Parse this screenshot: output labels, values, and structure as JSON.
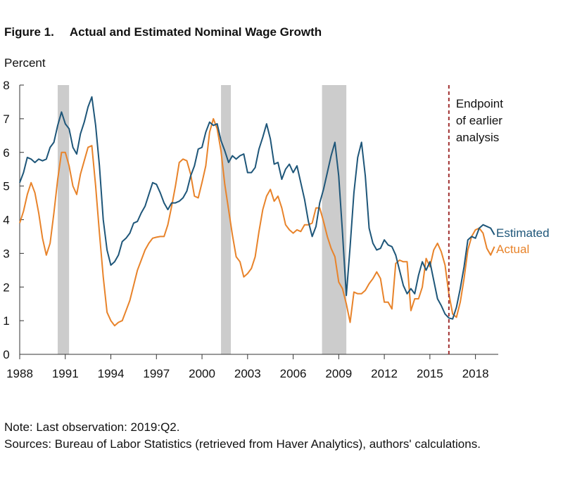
{
  "figure": {
    "number": "Figure 1.",
    "title": "Actual and Estimated Nominal Wage Growth",
    "unit_label": "Percent",
    "note": "Note: Last observation: 2019:Q2.",
    "sources": "Sources: Bureau of Labor Statistics (retrieved from Haver Analytics), authors' calculations."
  },
  "chart_data": {
    "type": "line",
    "title": "Actual and Estimated Nominal Wage Growth",
    "xlabel": "",
    "ylabel": "Percent",
    "xlim": [
      1988,
      2019.5
    ],
    "ylim": [
      0,
      8
    ],
    "x_ticks": [
      1988,
      1991,
      1994,
      1997,
      2000,
      2003,
      2006,
      2009,
      2012,
      2015,
      2018
    ],
    "y_ticks": [
      0,
      1,
      2,
      3,
      4,
      5,
      6,
      7,
      8
    ],
    "grid": false,
    "legend": "labels at right end of lines",
    "recessions": [
      [
        1990.5,
        1991.25
      ],
      [
        2001.25,
        2001.9
      ],
      [
        2007.9,
        2009.5
      ]
    ],
    "annotation": {
      "x": 2016.25,
      "lines": [
        "Endpoint",
        "of earlier",
        "analysis"
      ],
      "color": "#a03030"
    },
    "series": [
      {
        "name": "Estimated",
        "color": "#1e5679",
        "points": [
          [
            1988.0,
            5.1
          ],
          [
            1988.25,
            5.4
          ],
          [
            1988.5,
            5.85
          ],
          [
            1988.75,
            5.8
          ],
          [
            1989.0,
            5.7
          ],
          [
            1989.25,
            5.8
          ],
          [
            1989.5,
            5.75
          ],
          [
            1989.75,
            5.8
          ],
          [
            1990.0,
            6.15
          ],
          [
            1990.25,
            6.3
          ],
          [
            1990.5,
            6.8
          ],
          [
            1990.75,
            7.2
          ],
          [
            1991.0,
            6.85
          ],
          [
            1991.25,
            6.7
          ],
          [
            1991.5,
            6.15
          ],
          [
            1991.75,
            5.95
          ],
          [
            1992.0,
            6.55
          ],
          [
            1992.25,
            6.9
          ],
          [
            1992.5,
            7.35
          ],
          [
            1992.75,
            7.65
          ],
          [
            1993.0,
            6.8
          ],
          [
            1993.25,
            5.6
          ],
          [
            1993.5,
            4.0
          ],
          [
            1993.75,
            3.1
          ],
          [
            1994.0,
            2.65
          ],
          [
            1994.25,
            2.75
          ],
          [
            1994.5,
            2.95
          ],
          [
            1994.75,
            3.35
          ],
          [
            1995.0,
            3.45
          ],
          [
            1995.25,
            3.6
          ],
          [
            1995.5,
            3.9
          ],
          [
            1995.75,
            3.95
          ],
          [
            1996.0,
            4.2
          ],
          [
            1996.25,
            4.4
          ],
          [
            1996.5,
            4.75
          ],
          [
            1996.75,
            5.1
          ],
          [
            1997.0,
            5.05
          ],
          [
            1997.25,
            4.8
          ],
          [
            1997.5,
            4.5
          ],
          [
            1997.75,
            4.3
          ],
          [
            1998.0,
            4.5
          ],
          [
            1998.25,
            4.5
          ],
          [
            1998.5,
            4.55
          ],
          [
            1998.75,
            4.65
          ],
          [
            1999.0,
            4.85
          ],
          [
            1999.25,
            5.3
          ],
          [
            1999.5,
            5.6
          ],
          [
            1999.75,
            6.1
          ],
          [
            2000.0,
            6.15
          ],
          [
            2000.25,
            6.6
          ],
          [
            2000.5,
            6.9
          ],
          [
            2000.75,
            6.8
          ],
          [
            2001.0,
            6.85
          ],
          [
            2001.25,
            6.35
          ],
          [
            2001.5,
            6.05
          ],
          [
            2001.75,
            5.7
          ],
          [
            2002.0,
            5.9
          ],
          [
            2002.25,
            5.8
          ],
          [
            2002.5,
            5.9
          ],
          [
            2002.75,
            5.95
          ],
          [
            2003.0,
            5.4
          ],
          [
            2003.25,
            5.4
          ],
          [
            2003.5,
            5.55
          ],
          [
            2003.75,
            6.1
          ],
          [
            2004.0,
            6.45
          ],
          [
            2004.25,
            6.85
          ],
          [
            2004.5,
            6.4
          ],
          [
            2004.75,
            5.65
          ],
          [
            2005.0,
            5.7
          ],
          [
            2005.25,
            5.2
          ],
          [
            2005.5,
            5.5
          ],
          [
            2005.75,
            5.65
          ],
          [
            2006.0,
            5.4
          ],
          [
            2006.25,
            5.6
          ],
          [
            2006.5,
            5.1
          ],
          [
            2006.75,
            4.6
          ],
          [
            2007.0,
            3.95
          ],
          [
            2007.25,
            3.5
          ],
          [
            2007.5,
            3.8
          ],
          [
            2007.75,
            4.5
          ],
          [
            2008.0,
            4.9
          ],
          [
            2008.25,
            5.4
          ],
          [
            2008.5,
            5.9
          ],
          [
            2008.75,
            6.3
          ],
          [
            2009.0,
            5.3
          ],
          [
            2009.25,
            3.6
          ],
          [
            2009.5,
            1.75
          ],
          [
            2009.75,
            3.2
          ],
          [
            2010.0,
            4.8
          ],
          [
            2010.25,
            5.85
          ],
          [
            2010.5,
            6.3
          ],
          [
            2010.75,
            5.3
          ],
          [
            2011.0,
            3.75
          ],
          [
            2011.25,
            3.3
          ],
          [
            2011.5,
            3.1
          ],
          [
            2011.75,
            3.15
          ],
          [
            2012.0,
            3.4
          ],
          [
            2012.25,
            3.25
          ],
          [
            2012.5,
            3.2
          ],
          [
            2012.75,
            2.95
          ],
          [
            2013.0,
            2.5
          ],
          [
            2013.25,
            2.05
          ],
          [
            2013.5,
            1.8
          ],
          [
            2013.75,
            1.95
          ],
          [
            2014.0,
            1.8
          ],
          [
            2014.25,
            2.35
          ],
          [
            2014.5,
            2.75
          ],
          [
            2014.75,
            2.5
          ],
          [
            2015.0,
            2.75
          ],
          [
            2015.25,
            2.2
          ],
          [
            2015.5,
            1.65
          ],
          [
            2015.75,
            1.45
          ],
          [
            2016.0,
            1.2
          ],
          [
            2016.25,
            1.08
          ],
          [
            2016.5,
            1.05
          ],
          [
            2016.75,
            1.4
          ],
          [
            2017.0,
            1.95
          ],
          [
            2017.25,
            2.6
          ],
          [
            2017.5,
            3.4
          ],
          [
            2017.75,
            3.5
          ],
          [
            2018.0,
            3.45
          ],
          [
            2018.25,
            3.75
          ],
          [
            2018.5,
            3.85
          ],
          [
            2018.75,
            3.8
          ],
          [
            2019.0,
            3.75
          ],
          [
            2019.25,
            3.55
          ]
        ]
      },
      {
        "name": "Actual",
        "color": "#e8832a",
        "points": [
          [
            1988.0,
            3.9
          ],
          [
            1988.25,
            4.25
          ],
          [
            1988.5,
            4.75
          ],
          [
            1988.75,
            5.1
          ],
          [
            1989.0,
            4.8
          ],
          [
            1989.25,
            4.2
          ],
          [
            1989.5,
            3.45
          ],
          [
            1989.75,
            2.95
          ],
          [
            1990.0,
            3.3
          ],
          [
            1990.25,
            4.2
          ],
          [
            1990.5,
            5.2
          ],
          [
            1990.75,
            6.0
          ],
          [
            1991.0,
            6.0
          ],
          [
            1991.25,
            5.6
          ],
          [
            1991.5,
            5.0
          ],
          [
            1991.75,
            4.75
          ],
          [
            1992.0,
            5.35
          ],
          [
            1992.25,
            5.75
          ],
          [
            1992.5,
            6.15
          ],
          [
            1992.75,
            6.2
          ],
          [
            1993.0,
            5.0
          ],
          [
            1993.25,
            3.6
          ],
          [
            1993.5,
            2.3
          ],
          [
            1993.75,
            1.25
          ],
          [
            1994.0,
            1.0
          ],
          [
            1994.25,
            0.85
          ],
          [
            1994.5,
            0.95
          ],
          [
            1994.75,
            1.0
          ],
          [
            1995.0,
            1.3
          ],
          [
            1995.25,
            1.6
          ],
          [
            1995.5,
            2.05
          ],
          [
            1995.75,
            2.5
          ],
          [
            1996.0,
            2.8
          ],
          [
            1996.25,
            3.1
          ],
          [
            1996.5,
            3.3
          ],
          [
            1996.75,
            3.45
          ],
          [
            1997.0,
            3.48
          ],
          [
            1997.25,
            3.5
          ],
          [
            1997.5,
            3.5
          ],
          [
            1997.75,
            3.85
          ],
          [
            1998.0,
            4.4
          ],
          [
            1998.25,
            5.0
          ],
          [
            1998.5,
            5.7
          ],
          [
            1998.75,
            5.8
          ],
          [
            1999.0,
            5.75
          ],
          [
            1999.25,
            5.35
          ],
          [
            1999.5,
            4.7
          ],
          [
            1999.75,
            4.65
          ],
          [
            2000.0,
            5.1
          ],
          [
            2000.25,
            5.6
          ],
          [
            2000.5,
            6.6
          ],
          [
            2000.75,
            7.0
          ],
          [
            2001.0,
            6.7
          ],
          [
            2001.25,
            6.05
          ],
          [
            2001.5,
            5.05
          ],
          [
            2001.75,
            4.3
          ],
          [
            2002.0,
            3.55
          ],
          [
            2002.25,
            2.9
          ],
          [
            2002.5,
            2.75
          ],
          [
            2002.75,
            2.3
          ],
          [
            2003.0,
            2.4
          ],
          [
            2003.25,
            2.55
          ],
          [
            2003.5,
            2.9
          ],
          [
            2003.75,
            3.65
          ],
          [
            2004.0,
            4.3
          ],
          [
            2004.25,
            4.7
          ],
          [
            2004.5,
            4.9
          ],
          [
            2004.75,
            4.55
          ],
          [
            2005.0,
            4.7
          ],
          [
            2005.25,
            4.35
          ],
          [
            2005.5,
            3.85
          ],
          [
            2005.75,
            3.7
          ],
          [
            2006.0,
            3.6
          ],
          [
            2006.25,
            3.7
          ],
          [
            2006.5,
            3.65
          ],
          [
            2006.75,
            3.85
          ],
          [
            2007.0,
            3.85
          ],
          [
            2007.25,
            3.9
          ],
          [
            2007.5,
            4.35
          ],
          [
            2007.75,
            4.35
          ],
          [
            2008.0,
            3.95
          ],
          [
            2008.25,
            3.5
          ],
          [
            2008.5,
            3.15
          ],
          [
            2008.75,
            2.9
          ],
          [
            2009.0,
            2.15
          ],
          [
            2009.25,
            1.95
          ],
          [
            2009.5,
            1.5
          ],
          [
            2009.75,
            0.95
          ],
          [
            2010.0,
            1.85
          ],
          [
            2010.25,
            1.8
          ],
          [
            2010.5,
            1.8
          ],
          [
            2010.75,
            1.9
          ],
          [
            2011.0,
            2.1
          ],
          [
            2011.25,
            2.25
          ],
          [
            2011.5,
            2.45
          ],
          [
            2011.75,
            2.25
          ],
          [
            2012.0,
            1.55
          ],
          [
            2012.25,
            1.55
          ],
          [
            2012.5,
            1.35
          ],
          [
            2012.75,
            2.7
          ],
          [
            2013.0,
            2.8
          ],
          [
            2013.25,
            2.75
          ],
          [
            2013.5,
            2.75
          ],
          [
            2013.75,
            1.3
          ],
          [
            2014.0,
            1.65
          ],
          [
            2014.25,
            1.65
          ],
          [
            2014.5,
            2.0
          ],
          [
            2014.75,
            2.85
          ],
          [
            2015.0,
            2.6
          ],
          [
            2015.25,
            3.1
          ],
          [
            2015.5,
            3.3
          ],
          [
            2015.75,
            3.05
          ],
          [
            2016.0,
            2.65
          ],
          [
            2016.25,
            1.8
          ],
          [
            2016.5,
            1.2
          ],
          [
            2016.75,
            1.1
          ],
          [
            2017.0,
            1.55
          ],
          [
            2017.25,
            2.25
          ],
          [
            2017.5,
            3.1
          ],
          [
            2017.75,
            3.5
          ],
          [
            2018.0,
            3.7
          ],
          [
            2018.25,
            3.75
          ],
          [
            2018.5,
            3.6
          ],
          [
            2018.75,
            3.15
          ],
          [
            2019.0,
            2.95
          ],
          [
            2019.25,
            3.2
          ]
        ]
      }
    ]
  }
}
